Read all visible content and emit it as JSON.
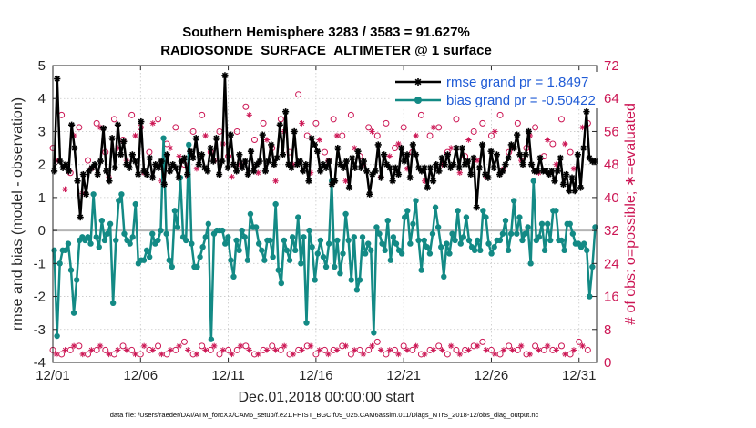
{
  "chart_data": {
    "type": "line",
    "title": "Southern Hemisphere 3283 / 3583 = 91.627%",
    "subtitle": "RADIOSONDE_SURFACE_ALTIMETER @ 1 surface",
    "xlabel": "Dec.01,2018 00:00:00 start",
    "ylabel": "rmse and bias (model - observation)",
    "ylabel_right": "# of obs: o=possible; ∗=evaluated",
    "xlim": [
      0,
      31
    ],
    "ylim": [
      -4,
      5
    ],
    "ylim_right": [
      0,
      72
    ],
    "x_ticks": [
      0,
      5,
      10,
      15,
      20,
      25,
      30
    ],
    "x_tick_labels": [
      "12/01",
      "12/06",
      "12/11",
      "12/16",
      "12/21",
      "12/26",
      "12/31"
    ],
    "y_ticks": [
      -4,
      -3,
      -2,
      -1,
      0,
      1,
      2,
      3,
      4,
      5
    ],
    "y_tick_labels": [
      "-4",
      "-3",
      "-2",
      "-1",
      "0",
      "1",
      "2",
      "3",
      "4",
      "5"
    ],
    "y_ticks_right": [
      0,
      8,
      16,
      24,
      32,
      40,
      48,
      56,
      64,
      72
    ],
    "y_tick_labels_right": [
      "0",
      "8",
      "16",
      "24",
      "32",
      "40",
      "48",
      "56",
      "64",
      "72"
    ],
    "zero_line": 0,
    "legend": [
      {
        "label": "rmse grand pr = 1.8497",
        "color": "#000000",
        "marker": "star"
      },
      {
        "label": "bias grand pr = -0.50422",
        "color": "#138a85",
        "marker": "circle"
      }
    ],
    "legend_position": "top-right",
    "series": [
      {
        "name": "rmse",
        "color": "#000000",
        "values": [
          1.8,
          4.6,
          2.1,
          1.9,
          2.0,
          1.8,
          3.2,
          2.5,
          1.5,
          0.4,
          1.7,
          1.1,
          1.8,
          1.9,
          2.0,
          1.7,
          2.1,
          3.1,
          1.8,
          1.5,
          2.8,
          1.9,
          3.2,
          2.3,
          2.7,
          2.0,
          1.9,
          2.3,
          2.1,
          1.7,
          3.3,
          1.8,
          1.7,
          2.2,
          1.6,
          2.0,
          1.9,
          2.1,
          1.4,
          2.3,
          1.8,
          2.0,
          1.9,
          1.6,
          2.1,
          2.2,
          1.7,
          2.4,
          2.2,
          2.8,
          2.0,
          2.3,
          1.9,
          1.8,
          2.5,
          2.1,
          2.8,
          1.7,
          2.1,
          4.7,
          1.9,
          2.9,
          2.0,
          1.8,
          2.3,
          1.9,
          2.1,
          1.7,
          2.4,
          1.8,
          2.0,
          2.1,
          2.9,
          1.8,
          2.1,
          2.6,
          2.0,
          2.2,
          3.2,
          2.3,
          3.6,
          2.0,
          1.9,
          3.0,
          2.0,
          2.1,
          1.8,
          2.0,
          1.5,
          2.8,
          2.6,
          2.4,
          1.8,
          2.0,
          1.9,
          2.1,
          1.4,
          1.5,
          2.5,
          2.0,
          1.9,
          2.1,
          1.3,
          2.2,
          1.9,
          2.4,
          1.9,
          2.1,
          1.8,
          1.1,
          1.7,
          1.8,
          2.6,
          1.6,
          2.3,
          2.0,
          1.9,
          1.5,
          1.9,
          1.7,
          2.5,
          2.1,
          2.3,
          1.6,
          2.6,
          2.3,
          1.9,
          1.8,
          1.9,
          1.3,
          1.9,
          1.5,
          2.0,
          1.8,
          2.2,
          2.0,
          2.3,
          1.9,
          2.0,
          2.5,
          1.9,
          2.5,
          2.0,
          2.1,
          1.7,
          2.2,
          0.7,
          1.9,
          2.6,
          1.7,
          1.6,
          2.4,
          1.9,
          2.3,
          1.7,
          1.8,
          2.0,
          2.2,
          2.6,
          2.5,
          2.9,
          2.3,
          2.0,
          2.3,
          3.0,
          2.0,
          1.8,
          1.8,
          2.2,
          1.8,
          1.8,
          1.7,
          1.8,
          1.5,
          1.8,
          2.2,
          1.4,
          1.7,
          1.2,
          1.6,
          1.2,
          2.3,
          1.3,
          2.5,
          3.6,
          2.2,
          2.1,
          2.1
        ]
      },
      {
        "name": "bias",
        "color": "#138a85",
        "values": [
          -0.6,
          -3.2,
          -1.0,
          -0.6,
          -0.6,
          -0.4,
          -1.2,
          -2.5,
          -1.5,
          -0.3,
          -0.2,
          -0.3,
          -0.2,
          -0.4,
          1.1,
          -0.2,
          -0.5,
          0.3,
          -0.3,
          -0.1,
          0.2,
          -2.2,
          -0.3,
          0.9,
          1.1,
          -0.1,
          -0.3,
          -0.4,
          -0.2,
          0.8,
          -1.0,
          -0.9,
          -0.9,
          -0.6,
          -0.8,
          -0.1,
          -0.4,
          -0.3,
          0.0,
          2.8,
          -0.1,
          -0.9,
          -1.1,
          0.6,
          0.1,
          1.6,
          -0.2,
          -0.3,
          2.6,
          -0.4,
          -1.1,
          -1.1,
          -0.8,
          -0.5,
          -0.2,
          0.2,
          -3.3,
          -0.1,
          0.0,
          0.0,
          0.0,
          -0.4,
          -0.2,
          -0.9,
          -1.4,
          -0.3,
          -0.6,
          0.0,
          -0.2,
          -0.9,
          0.5,
          0.1,
          0.1,
          -0.4,
          -0.6,
          -0.9,
          -0.3,
          -0.3,
          -0.8,
          0.8,
          -1.2,
          -1.6,
          -0.3,
          -0.6,
          -0.9,
          -0.2,
          -0.6,
          0.4,
          -1.0,
          -0.2,
          -2.8,
          0.0,
          -0.5,
          -1.5,
          -0.7,
          -0.3,
          -0.8,
          -1.1,
          -0.4,
          1.5,
          -1.1,
          -0.3,
          -1.3,
          -0.7,
          0.5,
          -0.3,
          -1.5,
          -0.2,
          -1.8,
          -1.5,
          -0.2,
          -0.7,
          -0.4,
          -0.6,
          -3.1,
          0.1,
          -0.1,
          -0.4,
          -0.6,
          0.3,
          -0.9,
          -0.2,
          -0.4,
          -0.6,
          -0.7,
          0.4,
          0.6,
          -0.4,
          0.2,
          0.9,
          -0.3,
          -1.2,
          -0.3,
          -0.5,
          -0.7,
          -0.1,
          0.7,
          0.1,
          -0.5,
          -1.4,
          -0.4,
          -0.7,
          -0.1,
          -0.3,
          0.6,
          -0.4,
          -0.2,
          0.4,
          -0.3,
          -0.5,
          -0.6,
          -0.3,
          -0.6,
          0.6,
          0.4,
          -0.4,
          -0.7,
          -0.5,
          -0.3,
          -0.3,
          -0.1,
          0.3,
          -0.6,
          -0.1,
          0.9,
          -0.1,
          0.4,
          -0.3,
          -0.1,
          0.1,
          -1.0,
          1.5,
          -0.3,
          -0.2,
          0.2,
          -0.6,
          0.2,
          -0.3,
          0.6,
          0.6,
          -0.3,
          -0.3,
          -0.6,
          0.2,
          0.2,
          -0.1,
          -0.4,
          -0.4,
          -0.5,
          -0.4,
          -0.6,
          -2.0,
          -1.1,
          0.1
        ]
      },
      {
        "name": "possible",
        "color": "#cc1654",
        "marker": "o",
        "high_x": [
          0.0,
          0.5,
          1.0,
          1.5,
          2.0,
          2.5,
          3.0,
          3.5,
          4.0,
          4.5,
          5.0,
          5.5,
          6.0,
          6.5,
          7.0,
          7.5,
          8.0,
          8.5,
          9.0,
          9.5,
          10.0,
          10.5,
          11.0,
          11.5,
          12.0,
          12.5,
          13.0,
          13.5,
          14.0,
          14.5,
          15.0,
          15.5,
          16.0,
          16.5,
          17.0,
          17.5,
          18.0,
          18.5,
          19.0,
          19.5,
          20.0,
          20.5,
          21.0,
          21.5,
          22.0,
          22.5,
          23.0,
          23.5,
          24.0,
          24.5,
          25.0,
          25.5,
          26.0,
          26.5,
          27.0,
          27.5,
          28.0,
          28.5,
          29.0,
          29.5,
          30.0,
          30.5
        ],
        "high": [
          52,
          60,
          46,
          57,
          49,
          58,
          51,
          59,
          54,
          60,
          57,
          51,
          59,
          53,
          57,
          48,
          56,
          60,
          51,
          56,
          50,
          56,
          62,
          54,
          58,
          52,
          59,
          51,
          65,
          55,
          58,
          51,
          59,
          55,
          60,
          50,
          57,
          55,
          58,
          52,
          57,
          51,
          60,
          55,
          57,
          51,
          59,
          50,
          56,
          58,
          55,
          60,
          51,
          58,
          52,
          57,
          50,
          53,
          59,
          51,
          64,
          58
        ],
        "low_x": [
          0.0,
          0.5,
          1.0,
          1.5,
          2.0,
          2.5,
          3.0,
          3.5,
          4.0,
          4.5,
          5.0,
          5.5,
          6.0,
          6.5,
          7.0,
          7.5,
          8.0,
          8.5,
          9.0,
          9.5,
          10.0,
          10.5,
          11.0,
          11.5,
          12.0,
          12.5,
          13.0,
          13.5,
          14.0,
          14.5,
          15.0,
          15.5,
          16.0,
          16.5,
          17.0,
          17.5,
          18.0,
          18.5,
          19.0,
          19.5,
          20.0,
          20.5,
          21.0,
          21.5,
          22.0,
          22.5,
          23.0,
          23.5,
          24.0,
          24.5,
          25.0,
          25.5,
          26.0,
          26.5,
          27.0,
          27.5,
          28.0,
          28.5,
          29.0,
          29.5,
          30.0,
          30.5
        ],
        "low": [
          3,
          2,
          3,
          4,
          2,
          3,
          3,
          2,
          4,
          3,
          2,
          3,
          4,
          2,
          3,
          5,
          2,
          4,
          3,
          2,
          3,
          3,
          4,
          2,
          3,
          4,
          3,
          2,
          3,
          4,
          2,
          3,
          3,
          4,
          2,
          3,
          3,
          5,
          2,
          3,
          4,
          3,
          2,
          3,
          4,
          2,
          3,
          3,
          4,
          5,
          3,
          2,
          4,
          3,
          2,
          4,
          3,
          3,
          4,
          2,
          5,
          3
        ]
      },
      {
        "name": "evaluated",
        "color": "#cc1654",
        "marker": "*",
        "high_x": [
          0.2,
          0.7,
          1.2,
          1.7,
          2.2,
          2.7,
          3.2,
          3.7,
          4.2,
          4.7,
          5.2,
          5.7,
          6.2,
          6.7,
          7.2,
          7.7,
          8.2,
          8.7,
          9.2,
          9.7,
          10.2,
          10.7,
          11.2,
          11.7,
          12.2,
          12.7,
          13.2,
          13.7,
          14.2,
          14.7,
          15.2,
          15.7,
          16.2,
          16.7,
          17.2,
          17.7,
          18.2,
          18.7,
          19.2,
          19.7,
          20.2,
          20.7,
          21.2,
          21.7,
          22.2,
          22.7,
          23.2,
          23.7,
          24.2,
          24.7,
          25.2,
          25.7,
          26.2,
          26.7,
          27.2,
          27.7,
          28.2,
          28.7,
          29.2,
          29.7,
          30.2
        ],
        "high": [
          49,
          42,
          55,
          41,
          47,
          57,
          45,
          52,
          49,
          55,
          46,
          58,
          44,
          52,
          50,
          45,
          47,
          55,
          49,
          53,
          45,
          48,
          60,
          46,
          54,
          44,
          56,
          48,
          58,
          46,
          54,
          49,
          55,
          44,
          52,
          48,
          56,
          45,
          50,
          53,
          47,
          55,
          44,
          57,
          48,
          52,
          46,
          54,
          49,
          45,
          56,
          47,
          52,
          49,
          55,
          46,
          54,
          48,
          53,
          47,
          57
        ],
        "low_x": [
          0.2,
          0.7,
          1.2,
          1.7,
          2.2,
          2.7,
          3.2,
          3.7,
          4.2,
          4.7,
          5.2,
          5.7,
          6.2,
          6.7,
          7.2,
          7.7,
          8.2,
          8.7,
          9.2,
          9.7,
          10.2,
          10.7,
          11.2,
          11.7,
          12.2,
          12.7,
          13.2,
          13.7,
          14.2,
          14.7,
          15.2,
          15.7,
          16.2,
          16.7,
          17.2,
          17.7,
          18.2,
          18.7,
          19.2,
          19.7,
          20.2,
          20.7,
          21.2,
          21.7,
          22.2,
          22.7,
          23.2,
          23.7,
          24.2,
          24.7,
          25.2,
          25.7,
          26.2,
          26.7,
          27.2,
          27.7,
          28.2,
          28.7,
          29.2,
          29.7,
          30.2
        ],
        "low": [
          2,
          3,
          4,
          2,
          3,
          4,
          2,
          3,
          3,
          2,
          4,
          3,
          2,
          3,
          4,
          3,
          2,
          3,
          4,
          3,
          2,
          4,
          3,
          2,
          3,
          3,
          4,
          2,
          3,
          4,
          3,
          2,
          3,
          4,
          3,
          2,
          4,
          3,
          3,
          2,
          3,
          4,
          2,
          3,
          3,
          4,
          2,
          3,
          4,
          3,
          2,
          3,
          3,
          4,
          2,
          3,
          4,
          3,
          2,
          3,
          4
        ]
      }
    ],
    "footnote": "data file: /Users/raeder/DAI/ATM_forcXX/CAM6_setup/f.e21.FHIST_BGC.f09_025.CAM6assim.011/Diags_NTrS_2018-12/obs_diag_output.nc"
  }
}
